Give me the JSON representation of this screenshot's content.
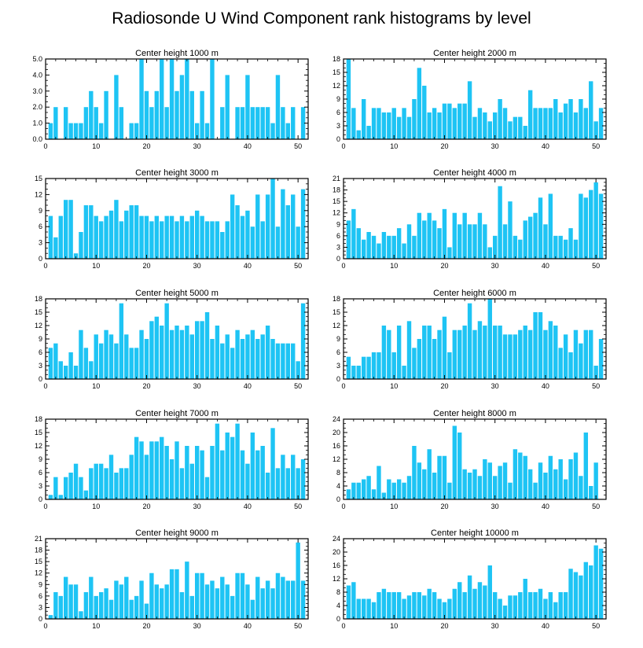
{
  "figure": {
    "title": "Radiosonde U Wind Component rank histograms by level",
    "bar_color": "#1ec4f4",
    "axis_color": "#000000"
  },
  "chart_data": [
    {
      "type": "bar",
      "title": "Center height 1000 m",
      "x": [
        1,
        2,
        3,
        4,
        5,
        6,
        7,
        8,
        9,
        10,
        11,
        12,
        13,
        14,
        15,
        16,
        17,
        18,
        19,
        20,
        21,
        22,
        23,
        24,
        25,
        26,
        27,
        28,
        29,
        30,
        31,
        32,
        33,
        34,
        35,
        36,
        37,
        38,
        39,
        40,
        41,
        42,
        43,
        44,
        45,
        46,
        47,
        48,
        49,
        50,
        51
      ],
      "values": [
        1,
        2,
        0,
        2,
        1,
        1,
        1,
        2,
        3,
        2,
        1,
        3,
        0,
        4,
        2,
        0,
        1,
        1,
        5,
        3,
        2,
        3,
        5,
        2,
        5,
        3,
        4,
        5,
        3,
        1,
        3,
        1,
        5,
        0,
        2,
        4,
        0,
        2,
        2,
        4,
        2,
        2,
        2,
        2,
        1,
        4,
        2,
        1,
        2,
        0,
        2
      ],
      "xlim": [
        0,
        52
      ],
      "ylim": [
        0,
        5
      ],
      "xticks": [
        0,
        10,
        20,
        30,
        40,
        50
      ],
      "yticks": [
        0,
        1,
        2,
        3,
        4,
        5
      ],
      "ytick_labels": [
        "0.0",
        "1.0",
        "2.0",
        "3.0",
        "4.0",
        "5.0"
      ],
      "xlabel": "",
      "ylabel": ""
    },
    {
      "type": "bar",
      "title": "Center height 2000 m",
      "x": [
        1,
        2,
        3,
        4,
        5,
        6,
        7,
        8,
        9,
        10,
        11,
        12,
        13,
        14,
        15,
        16,
        17,
        18,
        19,
        20,
        21,
        22,
        23,
        24,
        25,
        26,
        27,
        28,
        29,
        30,
        31,
        32,
        33,
        34,
        35,
        36,
        37,
        38,
        39,
        40,
        41,
        42,
        43,
        44,
        45,
        46,
        47,
        48,
        49,
        50,
        51
      ],
      "values": [
        18,
        7,
        2,
        9,
        3,
        7,
        7,
        6,
        6,
        7,
        5,
        7,
        5,
        9,
        16,
        12,
        6,
        7,
        6,
        8,
        8,
        7,
        8,
        8,
        13,
        5,
        7,
        6,
        4,
        6,
        9,
        7,
        4,
        5,
        5,
        3,
        11,
        7,
        7,
        7,
        7,
        9,
        6,
        8,
        9,
        6,
        9,
        7,
        13,
        4,
        7
      ],
      "xlim": [
        0,
        52
      ],
      "ylim": [
        0,
        18
      ],
      "xticks": [
        0,
        10,
        20,
        30,
        40,
        50
      ],
      "yticks": [
        0,
        3,
        6,
        9,
        12,
        15,
        18
      ],
      "ytick_labels": [
        "0",
        "3",
        "6",
        "9",
        "12",
        "15",
        "18"
      ],
      "xlabel": "",
      "ylabel": ""
    },
    {
      "type": "bar",
      "title": "Center height 3000 m",
      "x": [
        1,
        2,
        3,
        4,
        5,
        6,
        7,
        8,
        9,
        10,
        11,
        12,
        13,
        14,
        15,
        16,
        17,
        18,
        19,
        20,
        21,
        22,
        23,
        24,
        25,
        26,
        27,
        28,
        29,
        30,
        31,
        32,
        33,
        34,
        35,
        36,
        37,
        38,
        39,
        40,
        41,
        42,
        43,
        44,
        45,
        46,
        47,
        48,
        49,
        50,
        51
      ],
      "values": [
        8,
        4,
        8,
        11,
        11,
        1,
        5,
        10,
        10,
        8,
        7,
        8,
        9,
        11,
        7,
        9,
        10,
        10,
        8,
        8,
        7,
        8,
        7,
        8,
        8,
        7,
        8,
        7,
        8,
        9,
        8,
        7,
        7,
        7,
        5,
        7,
        12,
        10,
        8,
        9,
        6,
        12,
        7,
        12,
        15,
        6,
        13,
        10,
        12,
        6,
        13
      ],
      "xlim": [
        0,
        52
      ],
      "ylim": [
        0,
        15
      ],
      "xticks": [
        0,
        10,
        20,
        30,
        40,
        50
      ],
      "yticks": [
        0,
        3,
        6,
        9,
        12,
        15
      ],
      "ytick_labels": [
        "0",
        "3",
        "6",
        "9",
        "12",
        "15"
      ],
      "xlabel": "",
      "ylabel": ""
    },
    {
      "type": "bar",
      "title": "Center height 4000 m",
      "x": [
        1,
        2,
        3,
        4,
        5,
        6,
        7,
        8,
        9,
        10,
        11,
        12,
        13,
        14,
        15,
        16,
        17,
        18,
        19,
        20,
        21,
        22,
        23,
        24,
        25,
        26,
        27,
        28,
        29,
        30,
        31,
        32,
        33,
        34,
        35,
        36,
        37,
        38,
        39,
        40,
        41,
        42,
        43,
        44,
        45,
        46,
        47,
        48,
        49,
        50,
        51
      ],
      "values": [
        10,
        13,
        8,
        5,
        7,
        6,
        4,
        7,
        6,
        6,
        8,
        4,
        9,
        6,
        12,
        10,
        12,
        10,
        8,
        13,
        3,
        12,
        9,
        12,
        9,
        9,
        12,
        9,
        3,
        6,
        19,
        9,
        15,
        6,
        5,
        10,
        11,
        12,
        16,
        9,
        17,
        6,
        6,
        5,
        8,
        5,
        17,
        16,
        18,
        20,
        17
      ],
      "xlim": [
        0,
        52
      ],
      "ylim": [
        0,
        21
      ],
      "xticks": [
        0,
        10,
        20,
        30,
        40,
        50
      ],
      "yticks": [
        0,
        3,
        6,
        9,
        12,
        15,
        18,
        21
      ],
      "ytick_labels": [
        "0",
        "3",
        "6",
        "9",
        "12",
        "15",
        "18",
        "21"
      ],
      "xlabel": "",
      "ylabel": ""
    },
    {
      "type": "bar",
      "title": "Center height 5000 m",
      "x": [
        1,
        2,
        3,
        4,
        5,
        6,
        7,
        8,
        9,
        10,
        11,
        12,
        13,
        14,
        15,
        16,
        17,
        18,
        19,
        20,
        21,
        22,
        23,
        24,
        25,
        26,
        27,
        28,
        29,
        30,
        31,
        32,
        33,
        34,
        35,
        36,
        37,
        38,
        39,
        40,
        41,
        42,
        43,
        44,
        45,
        46,
        47,
        48,
        49,
        50,
        51
      ],
      "values": [
        7,
        8,
        4,
        3,
        6,
        3,
        11,
        7,
        4,
        10,
        8,
        11,
        10,
        8,
        17,
        10,
        7,
        7,
        11,
        9,
        13,
        14,
        12,
        17,
        11,
        12,
        11,
        12,
        10,
        13,
        13,
        15,
        9,
        12,
        8,
        10,
        7,
        11,
        9,
        10,
        11,
        9,
        10,
        12,
        9,
        8,
        8,
        8,
        8,
        4,
        17
      ],
      "xlim": [
        0,
        52
      ],
      "ylim": [
        0,
        18
      ],
      "xticks": [
        0,
        10,
        20,
        30,
        40,
        50
      ],
      "yticks": [
        0,
        3,
        6,
        9,
        12,
        15,
        18
      ],
      "ytick_labels": [
        "0",
        "3",
        "6",
        "9",
        "12",
        "15",
        "18"
      ],
      "xlabel": "",
      "ylabel": ""
    },
    {
      "type": "bar",
      "title": "Center height 6000 m",
      "x": [
        1,
        2,
        3,
        4,
        5,
        6,
        7,
        8,
        9,
        10,
        11,
        12,
        13,
        14,
        15,
        16,
        17,
        18,
        19,
        20,
        21,
        22,
        23,
        24,
        25,
        26,
        27,
        28,
        29,
        30,
        31,
        32,
        33,
        34,
        35,
        36,
        37,
        38,
        39,
        40,
        41,
        42,
        43,
        44,
        45,
        46,
        47,
        48,
        49,
        50,
        51
      ],
      "values": [
        5,
        3,
        3,
        5,
        5,
        6,
        6,
        12,
        11,
        6,
        12,
        3,
        13,
        7,
        9,
        12,
        12,
        9,
        11,
        14,
        6,
        11,
        11,
        12,
        17,
        11,
        13,
        12,
        18,
        12,
        12,
        10,
        10,
        10,
        11,
        12,
        11,
        15,
        15,
        11,
        13,
        12,
        7,
        10,
        6,
        11,
        8,
        11,
        11,
        3,
        9
      ],
      "xlim": [
        0,
        52
      ],
      "ylim": [
        0,
        18
      ],
      "xticks": [
        0,
        10,
        20,
        30,
        40,
        50
      ],
      "yticks": [
        0,
        3,
        6,
        9,
        12,
        15,
        18
      ],
      "ytick_labels": [
        "0",
        "3",
        "6",
        "9",
        "12",
        "15",
        "18"
      ],
      "xlabel": "",
      "ylabel": ""
    },
    {
      "type": "bar",
      "title": "Center height 7000 m",
      "x": [
        1,
        2,
        3,
        4,
        5,
        6,
        7,
        8,
        9,
        10,
        11,
        12,
        13,
        14,
        15,
        16,
        17,
        18,
        19,
        20,
        21,
        22,
        23,
        24,
        25,
        26,
        27,
        28,
        29,
        30,
        31,
        32,
        33,
        34,
        35,
        36,
        37,
        38,
        39,
        40,
        41,
        42,
        43,
        44,
        45,
        46,
        47,
        48,
        49,
        50,
        51
      ],
      "values": [
        1,
        5,
        1,
        5,
        6,
        8,
        5,
        2,
        7,
        8,
        8,
        7,
        10,
        6,
        7,
        7,
        10,
        14,
        13,
        10,
        13,
        13,
        14,
        12,
        9,
        13,
        7,
        12,
        8,
        12,
        11,
        5,
        12,
        17,
        11,
        15,
        14,
        17,
        11,
        8,
        15,
        11,
        12,
        6,
        16,
        7,
        10,
        7,
        10,
        7,
        9
      ],
      "xlim": [
        0,
        52
      ],
      "ylim": [
        0,
        18
      ],
      "xticks": [
        0,
        10,
        20,
        30,
        40,
        50
      ],
      "yticks": [
        0,
        3,
        6,
        9,
        12,
        15,
        18
      ],
      "ytick_labels": [
        "0",
        "3",
        "6",
        "9",
        "12",
        "15",
        "18"
      ],
      "xlabel": "",
      "ylabel": ""
    },
    {
      "type": "bar",
      "title": "Center height 8000 m",
      "x": [
        1,
        2,
        3,
        4,
        5,
        6,
        7,
        8,
        9,
        10,
        11,
        12,
        13,
        14,
        15,
        16,
        17,
        18,
        19,
        20,
        21,
        22,
        23,
        24,
        25,
        26,
        27,
        28,
        29,
        30,
        31,
        32,
        33,
        34,
        35,
        36,
        37,
        38,
        39,
        40,
        41,
        42,
        43,
        44,
        45,
        46,
        47,
        48,
        49,
        50,
        51
      ],
      "values": [
        3,
        5,
        5,
        6,
        7,
        3,
        10,
        2,
        6,
        5,
        6,
        5,
        7,
        16,
        11,
        9,
        15,
        8,
        13,
        13,
        5,
        22,
        20,
        9,
        8,
        9,
        7,
        12,
        11,
        7,
        10,
        11,
        5,
        15,
        14,
        13,
        9,
        5,
        11,
        8,
        13,
        9,
        12,
        6,
        12,
        14,
        7,
        20,
        4,
        11,
        0
      ],
      "xlim": [
        0,
        52
      ],
      "ylim": [
        0,
        24
      ],
      "xticks": [
        0,
        10,
        20,
        30,
        40,
        50
      ],
      "yticks": [
        0,
        4,
        8,
        12,
        16,
        20,
        24
      ],
      "ytick_labels": [
        "0",
        "4",
        "8",
        "12",
        "16",
        "20",
        "24"
      ],
      "xlabel": "",
      "ylabel": ""
    },
    {
      "type": "bar",
      "title": "Center height 9000 m",
      "x": [
        1,
        2,
        3,
        4,
        5,
        6,
        7,
        8,
        9,
        10,
        11,
        12,
        13,
        14,
        15,
        16,
        17,
        18,
        19,
        20,
        21,
        22,
        23,
        24,
        25,
        26,
        27,
        28,
        29,
        30,
        31,
        32,
        33,
        34,
        35,
        36,
        37,
        38,
        39,
        40,
        41,
        42,
        43,
        44,
        45,
        46,
        47,
        48,
        49,
        50,
        51
      ],
      "values": [
        1,
        7,
        6,
        11,
        9,
        9,
        2,
        7,
        11,
        6,
        7,
        8,
        5,
        10,
        9,
        11,
        5,
        6,
        10,
        4,
        12,
        9,
        8,
        9,
        13,
        13,
        7,
        15,
        6,
        12,
        12,
        9,
        10,
        8,
        11,
        9,
        6,
        12,
        12,
        9,
        5,
        11,
        8,
        10,
        8,
        12,
        11,
        10,
        10,
        20,
        10
      ],
      "xlim": [
        0,
        52
      ],
      "ylim": [
        0,
        21
      ],
      "xticks": [
        0,
        10,
        20,
        30,
        40,
        50
      ],
      "yticks": [
        0,
        3,
        6,
        9,
        12,
        15,
        18,
        21
      ],
      "ytick_labels": [
        "0",
        "3",
        "6",
        "9",
        "12",
        "15",
        "18",
        "21"
      ],
      "xlabel": "",
      "ylabel": ""
    },
    {
      "type": "bar",
      "title": "Center height 10000 m",
      "x": [
        1,
        2,
        3,
        4,
        5,
        6,
        7,
        8,
        9,
        10,
        11,
        12,
        13,
        14,
        15,
        16,
        17,
        18,
        19,
        20,
        21,
        22,
        23,
        24,
        25,
        26,
        27,
        28,
        29,
        30,
        31,
        32,
        33,
        34,
        35,
        36,
        37,
        38,
        39,
        40,
        41,
        42,
        43,
        44,
        45,
        46,
        47,
        48,
        49,
        50,
        51
      ],
      "values": [
        10,
        11,
        6,
        6,
        6,
        5,
        8,
        9,
        8,
        8,
        8,
        6,
        7,
        8,
        8,
        7,
        9,
        8,
        6,
        5,
        6,
        9,
        11,
        8,
        13,
        9,
        11,
        10,
        16,
        8,
        6,
        4,
        7,
        7,
        8,
        12,
        8,
        8,
        9,
        6,
        8,
        5,
        8,
        8,
        15,
        14,
        13,
        17,
        16,
        22,
        21
      ],
      "xlim": [
        0,
        52
      ],
      "ylim": [
        0,
        24
      ],
      "xticks": [
        0,
        10,
        20,
        30,
        40,
        50
      ],
      "yticks": [
        0,
        4,
        8,
        12,
        16,
        20,
        24
      ],
      "ytick_labels": [
        "0",
        "4",
        "8",
        "12",
        "16",
        "20",
        "24"
      ],
      "xlabel": "",
      "ylabel": ""
    }
  ]
}
